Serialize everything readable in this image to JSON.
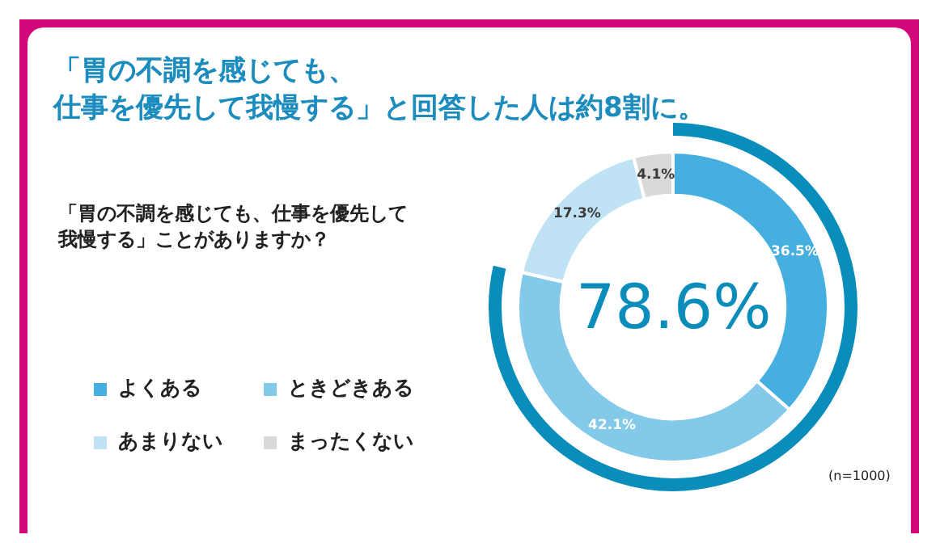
{
  "chart_data": {
    "type": "donut",
    "title": "「胃の不調を感じても、仕事を優先して我慢する」と回答した人は約8割に。",
    "subtitle": "「胃の不調を感じても、仕事を優先して我慢する」ことがありますか？",
    "categories": [
      "よくある",
      "ときどきある",
      "あまりない",
      "まったくない"
    ],
    "values": [
      36.5,
      42.1,
      17.3,
      4.1
    ],
    "colors": [
      "#45b0e0",
      "#82c9ea",
      "#bfe3f5",
      "#d9d9d9"
    ],
    "value_labels": [
      "36.5%",
      "42.1%",
      "17.3%",
      "4.1%"
    ],
    "annotations": [
      "78.6%",
      "(n=1000)"
    ],
    "legend": "left"
  }
}
